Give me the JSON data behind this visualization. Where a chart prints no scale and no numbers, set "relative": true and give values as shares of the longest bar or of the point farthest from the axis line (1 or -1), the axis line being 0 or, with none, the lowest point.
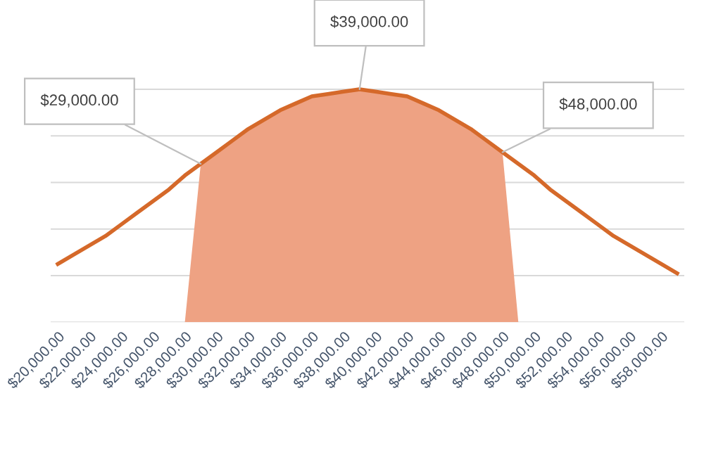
{
  "chart_data": {
    "type": "line",
    "relative": true,
    "grid": "y",
    "legend": false,
    "marker": "none",
    "line_style": "solid",
    "categories": [
      "$20,000.00",
      null,
      "$22,000.00",
      null,
      "$24,000.00",
      null,
      "$26,000.00",
      null,
      "$28,000.00",
      null,
      "$30,000.00",
      null,
      "$32,000.00",
      null,
      "$34,000.00",
      null,
      "$36,000.00",
      null,
      "$38,000.00",
      null,
      "$40,000.00",
      null,
      "$42,000.00",
      null,
      "$44,000.00",
      null,
      "$46,000.00",
      null,
      "$48,000.00",
      null,
      "$50,000.00",
      null,
      "$52,000.00",
      null,
      "$54,000.00",
      null,
      "$56,000.00",
      null,
      "$58,000.00",
      null
    ],
    "series": [
      {
        "type": "area",
        "color": "#eea283",
        "values": [
          null,
          null,
          null,
          null,
          null,
          null,
          null,
          null,
          0,
          0.68,
          0.73,
          0.78,
          0.83,
          0.87,
          0.91,
          0.94,
          0.97,
          0.98,
          0.99,
          1.0,
          0.99,
          0.98,
          0.97,
          0.94,
          0.91,
          0.87,
          0.83,
          0.78,
          0.73,
          0,
          null,
          null,
          null,
          null,
          null,
          null,
          null,
          null,
          null,
          null
        ]
      },
      {
        "color": "#d5692a",
        "values": [
          0.25,
          0.29,
          0.33,
          0.37,
          0.42,
          0.47,
          0.52,
          0.57,
          0.63,
          0.68,
          0.73,
          0.78,
          0.83,
          0.87,
          0.91,
          0.94,
          0.97,
          0.98,
          0.99,
          1.0,
          0.99,
          0.98,
          0.97,
          0.94,
          0.91,
          0.87,
          0.83,
          0.78,
          0.73,
          0.68,
          0.63,
          0.57,
          0.52,
          0.47,
          0.42,
          0.37,
          0.33,
          0.29,
          0.25,
          0.21
        ]
      }
    ],
    "annotations": [
      "$29,000.00",
      "$39,000.00",
      "$48,000.00"
    ]
  }
}
